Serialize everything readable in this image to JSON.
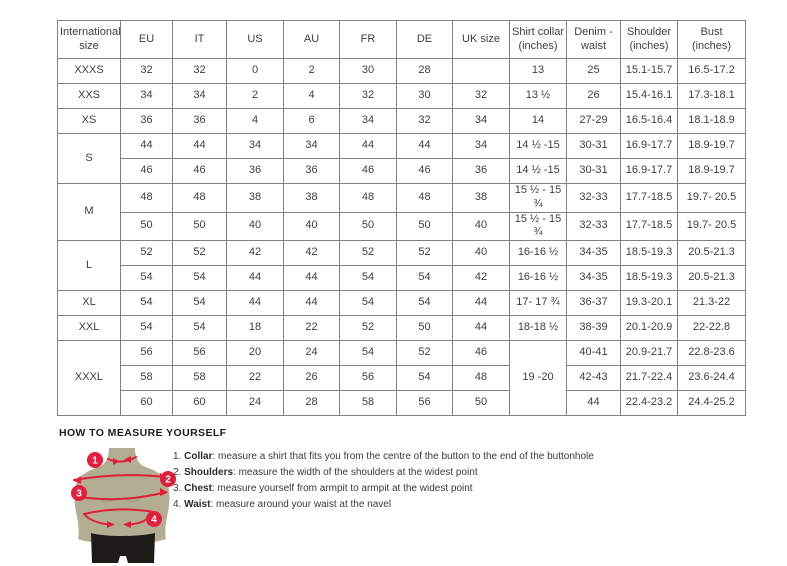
{
  "colors": {
    "accent_red": "#e11e3c",
    "mannequin": "#b3ae93",
    "shorts": "#1d1b17",
    "border": "#828282"
  },
  "table": {
    "headers": [
      "International size",
      "EU",
      "IT",
      "US",
      "AU",
      "FR",
      "DE",
      "UK size",
      "Shirt collar (inches)",
      "Denim - waist",
      "Shoulder (inches)",
      "Bust (inches)"
    ],
    "rows": [
      [
        {
          "t": "XXXS"
        },
        {
          "t": "32"
        },
        {
          "t": "32"
        },
        {
          "t": "0"
        },
        {
          "t": "2"
        },
        {
          "t": "30"
        },
        {
          "t": "28"
        },
        {
          "t": ""
        },
        {
          "t": "13"
        },
        {
          "t": "25"
        },
        {
          "t": "15.1-15.7"
        },
        {
          "t": "16.5-17.2"
        }
      ],
      [
        {
          "t": "XXS"
        },
        {
          "t": "34"
        },
        {
          "t": "34"
        },
        {
          "t": "2"
        },
        {
          "t": "4"
        },
        {
          "t": "32"
        },
        {
          "t": "30"
        },
        {
          "t": "32"
        },
        {
          "t": "13 ½"
        },
        {
          "t": "26"
        },
        {
          "t": "15.4-16.1"
        },
        {
          "t": "17.3-18.1"
        }
      ],
      [
        {
          "t": "XS"
        },
        {
          "t": "36"
        },
        {
          "t": "36"
        },
        {
          "t": "4"
        },
        {
          "t": "6"
        },
        {
          "t": "34"
        },
        {
          "t": "32"
        },
        {
          "t": "34"
        },
        {
          "t": "14"
        },
        {
          "t": "27-29"
        },
        {
          "t": "16.5-16.4"
        },
        {
          "t": "18.1-18.9"
        }
      ],
      [
        {
          "t": "S",
          "rs": 2
        },
        {
          "t": "44"
        },
        {
          "t": "44"
        },
        {
          "t": "34"
        },
        {
          "t": "34"
        },
        {
          "t": "44"
        },
        {
          "t": "44"
        },
        {
          "t": "34"
        },
        {
          "t": "14 ½ -15"
        },
        {
          "t": "30-31"
        },
        {
          "t": "16.9-17.7"
        },
        {
          "t": "18.9-19.7"
        }
      ],
      [
        {
          "t": "46"
        },
        {
          "t": "46"
        },
        {
          "t": "36"
        },
        {
          "t": "36"
        },
        {
          "t": "46"
        },
        {
          "t": "46"
        },
        {
          "t": "36"
        },
        {
          "t": "14 ½ -15"
        },
        {
          "t": "30-31"
        },
        {
          "t": "16.9-17.7"
        },
        {
          "t": "18.9-19.7"
        }
      ],
      [
        {
          "t": "M",
          "rs": 2
        },
        {
          "t": "48"
        },
        {
          "t": "48"
        },
        {
          "t": "38"
        },
        {
          "t": "38"
        },
        {
          "t": "48"
        },
        {
          "t": "48"
        },
        {
          "t": "38"
        },
        {
          "t": "15 ½ - 15 ¾"
        },
        {
          "t": "32-33"
        },
        {
          "t": "17.7-18.5"
        },
        {
          "t": "19.7- 20.5"
        }
      ],
      [
        {
          "t": "50"
        },
        {
          "t": "50"
        },
        {
          "t": "40"
        },
        {
          "t": "40"
        },
        {
          "t": "50"
        },
        {
          "t": "50"
        },
        {
          "t": "40"
        },
        {
          "t": "15 ½ - 15 ¾"
        },
        {
          "t": "32-33"
        },
        {
          "t": "17.7-18.5"
        },
        {
          "t": "19.7- 20.5"
        }
      ],
      [
        {
          "t": "L",
          "rs": 2
        },
        {
          "t": "52"
        },
        {
          "t": "52"
        },
        {
          "t": "42"
        },
        {
          "t": "42"
        },
        {
          "t": "52"
        },
        {
          "t": "52"
        },
        {
          "t": "40"
        },
        {
          "t": "16-16 ½"
        },
        {
          "t": "34-35"
        },
        {
          "t": "18.5-19.3"
        },
        {
          "t": "20.5-21.3"
        }
      ],
      [
        {
          "t": "54"
        },
        {
          "t": "54"
        },
        {
          "t": "44"
        },
        {
          "t": "44"
        },
        {
          "t": "54"
        },
        {
          "t": "54"
        },
        {
          "t": "42"
        },
        {
          "t": "16-16 ½"
        },
        {
          "t": "34-35"
        },
        {
          "t": "18.5-19.3"
        },
        {
          "t": "20.5-21.3"
        }
      ],
      [
        {
          "t": "XL"
        },
        {
          "t": "54"
        },
        {
          "t": "54"
        },
        {
          "t": "44"
        },
        {
          "t": "44"
        },
        {
          "t": "54"
        },
        {
          "t": "54"
        },
        {
          "t": "44"
        },
        {
          "t": "17- 17 ¾"
        },
        {
          "t": "36-37"
        },
        {
          "t": "19.3-20.1"
        },
        {
          "t": "21.3-22"
        }
      ],
      [
        {
          "t": "XXL"
        },
        {
          "t": "54"
        },
        {
          "t": "54"
        },
        {
          "t": "18"
        },
        {
          "t": "22"
        },
        {
          "t": "52"
        },
        {
          "t": "50"
        },
        {
          "t": "44"
        },
        {
          "t": "18-18 ½"
        },
        {
          "t": "38-39"
        },
        {
          "t": "20.1-20.9"
        },
        {
          "t": "22-22.8"
        }
      ],
      [
        {
          "t": "XXXL",
          "rs": 3
        },
        {
          "t": "56"
        },
        {
          "t": "56"
        },
        {
          "t": "20"
        },
        {
          "t": "24"
        },
        {
          "t": "54"
        },
        {
          "t": "52"
        },
        {
          "t": "46"
        },
        {
          "t": "19 -20",
          "rs": 3
        },
        {
          "t": "40-41"
        },
        {
          "t": "20.9-21.7"
        },
        {
          "t": "22.8-23.6"
        }
      ],
      [
        {
          "t": "58"
        },
        {
          "t": "58"
        },
        {
          "t": "22"
        },
        {
          "t": "26"
        },
        {
          "t": "56"
        },
        {
          "t": "54"
        },
        {
          "t": "48"
        },
        {
          "t": "42-43"
        },
        {
          "t": "21.7-22.4"
        },
        {
          "t": "23.6-24.4"
        }
      ],
      [
        {
          "t": "60"
        },
        {
          "t": "60"
        },
        {
          "t": "24"
        },
        {
          "t": "28"
        },
        {
          "t": "58"
        },
        {
          "t": "56"
        },
        {
          "t": "50"
        },
        {
          "t": "44"
        },
        {
          "t": "22.4-23.2"
        },
        {
          "t": "24.4-25.2"
        }
      ]
    ]
  },
  "measure": {
    "title": "HOW TO MEASURE YOURSELF",
    "items": [
      {
        "num": "1.",
        "label": "Collar",
        "rest": ": measure a shirt that fits you from the centre of the button to the end of the buttonhole"
      },
      {
        "num": "2.",
        "label": "Shoulders",
        "rest": ": measure the width of the shoulders at the widest point"
      },
      {
        "num": "3.",
        "label": "Chest",
        "rest": ": measure yourself from armpit to armpit at the widest point"
      },
      {
        "num": "4.",
        "label": "Waist",
        "rest": ": measure around your waist at the navel"
      }
    ],
    "markers": [
      "1",
      "2",
      "3",
      "4"
    ]
  }
}
